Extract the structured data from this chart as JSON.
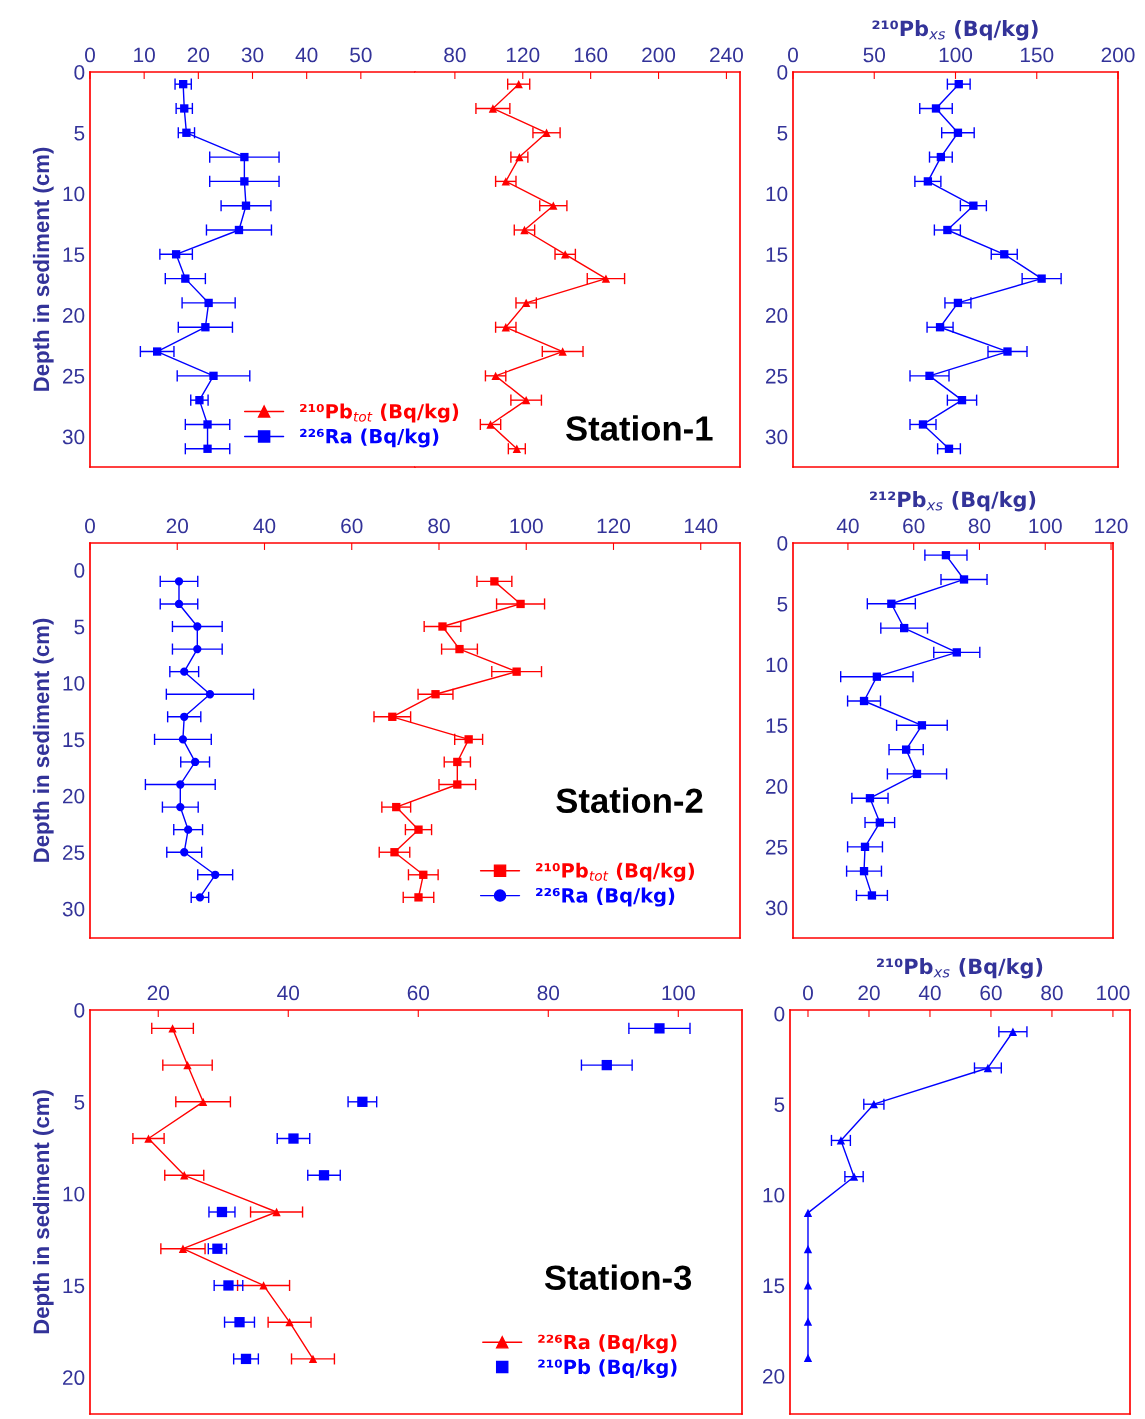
{
  "chart_data": [
    {
      "type": "line",
      "ylabel": "Depth in sediment (cm)",
      "xlim": [
        0,
        60
      ],
      "xticks": [
        0,
        10,
        20,
        30,
        40,
        50
      ],
      "ylim": [
        32.5,
        0
      ],
      "yticks": [
        0,
        5,
        10,
        15,
        20,
        25,
        30
      ],
      "series": [
        {
          "name": "²²⁶Ra (Bq/kg)",
          "color": "#0000ff",
          "marker": "square",
          "x": [
            17.2,
            17.4,
            17.8,
            28.5,
            28.5,
            28.8,
            27.5,
            15.9,
            17.6,
            21.9,
            21.3,
            12.4,
            22.8,
            20.2,
            21.7,
            21.7
          ],
          "values": [
            1,
            3,
            5,
            7,
            9,
            11,
            13,
            15,
            17,
            19,
            21,
            23,
            25,
            27,
            29,
            31
          ],
          "xerrors": [
            1.5,
            1.5,
            1.5,
            6.4,
            6.4,
            4.6,
            6,
            3,
            3.7,
            4.9,
            5,
            3.1,
            6.7,
            1.6,
            4.1,
            4.1
          ]
        }
      ]
    },
    {
      "type": "line",
      "xlim": [
        56.5,
        248
      ],
      "xticks": [
        80,
        120,
        160,
        200,
        240
      ],
      "ylim": [
        32.5,
        0
      ],
      "yticks": [
        0,
        5,
        10,
        15,
        20,
        25,
        30
      ],
      "tick_labels": "x",
      "legend": "bottom left",
      "annotations": [
        "Station-1"
      ],
      "series": [
        {
          "name": "²¹⁰Pb$_{tot}$ (Bq/kg)",
          "color": "#ff0000",
          "marker": "triangle",
          "x": [
            117.6,
            102.4,
            134,
            118,
            110,
            138,
            121,
            145,
            169,
            122,
            110,
            143.5,
            104,
            122,
            101,
            116.5
          ],
          "values": [
            1,
            3,
            5,
            7,
            9,
            11,
            13,
            15,
            17,
            19,
            21,
            23,
            25,
            27,
            29,
            31
          ],
          "xerrors": [
            6.5,
            10,
            8,
            5,
            6,
            8,
            6,
            6,
            11,
            6,
            6,
            12,
            6,
            9,
            6,
            5
          ]
        }
      ]
    },
    {
      "type": "line",
      "xlabel": "²¹⁰Pb$_{xs}$ (Bq/kg)",
      "xlim": [
        0,
        200
      ],
      "xticks": [
        0,
        50,
        100,
        150,
        200
      ],
      "ylim": [
        32.5,
        0
      ],
      "yticks": [
        0,
        5,
        10,
        15,
        20,
        25,
        30
      ],
      "series": [
        {
          "color": "#0000ff",
          "marker": "square",
          "x": [
            102,
            88,
            101.5,
            91,
            83,
            111,
            95,
            130,
            153,
            101.5,
            90.5,
            132,
            84,
            104,
            80,
            96
          ],
          "values": [
            1,
            3,
            5,
            7,
            9,
            11,
            13,
            15,
            17,
            19,
            21,
            23,
            25,
            27,
            29,
            31
          ],
          "xerrors": [
            7,
            10,
            10,
            7,
            8,
            8,
            8,
            8,
            12,
            8,
            8,
            12,
            12,
            9,
            8,
            7
          ]
        }
      ]
    },
    {
      "type": "line",
      "ylabel": "Depth in sediment (cm)",
      "xlim": [
        0,
        149
      ],
      "xticks": [
        0,
        20,
        40,
        60,
        80,
        100,
        120,
        140
      ],
      "ylim": [
        32.6,
        -2.4
      ],
      "yticks": [
        0,
        5,
        10,
        15,
        20,
        25,
        30
      ],
      "legend": "bottom right",
      "annotations": [
        "Station-2"
      ],
      "series": [
        {
          "name": "²¹⁰Pb$_{tot}$ (Bq/kg)",
          "color": "#ff0000",
          "marker": "square",
          "x": [
            92.7,
            98.7,
            80.8,
            84.7,
            97.8,
            79.2,
            69.3,
            86.8,
            84.2,
            84.2,
            70.2,
            75.3,
            69.8,
            76.4,
            75.3
          ],
          "values": [
            1,
            3,
            5,
            7,
            9,
            11,
            13,
            15,
            17,
            19,
            21,
            23,
            25,
            27,
            29
          ],
          "xerrors": [
            4,
            5.5,
            4.2,
            4.1,
            5.7,
            4,
            4.2,
            3.2,
            3,
            4.2,
            3.3,
            3,
            3.5,
            3.4,
            3.5
          ]
        },
        {
          "name": "²²⁶Ra (Bq/kg)",
          "color": "#0000ff",
          "marker": "circle",
          "x": [
            20.4,
            20.4,
            24.6,
            24.6,
            21.6,
            27.5,
            21.6,
            21.3,
            24.1,
            20.7,
            20.7,
            22.5,
            21.6,
            28.7,
            25.2
          ],
          "values": [
            1,
            3,
            5,
            7,
            9,
            11,
            13,
            15,
            17,
            19,
            21,
            23,
            25,
            27,
            29
          ],
          "xerrors": [
            4.3,
            4.3,
            5.7,
            5.7,
            3.3,
            10,
            3.8,
            6.5,
            3.3,
            8,
            4.1,
            3.3,
            4,
            4,
            2
          ]
        }
      ]
    },
    {
      "type": "line",
      "xlabel": "²¹²Pb$_{xs}$ (Bq/kg)",
      "xlim": [
        23.3,
        120.6
      ],
      "xticks": [
        40,
        60,
        80,
        100,
        120
      ],
      "ylim": [
        32.5,
        0
      ],
      "yticks": [
        0,
        5,
        10,
        15,
        20,
        25,
        30
      ],
      "series": [
        {
          "color": "#0000ff",
          "marker": "square",
          "x": [
            69.8,
            75.3,
            53.2,
            57.1,
            73.1,
            48.8,
            44.9,
            62.5,
            57.7,
            61,
            46.7,
            49.7,
            45.2,
            44.9,
            47.3
          ],
          "values": [
            1,
            3,
            5,
            7,
            9,
            11,
            13,
            15,
            17,
            19,
            21,
            23,
            25,
            27,
            29
          ],
          "xerrors": [
            6.4,
            7,
            7.3,
            7.1,
            7,
            11,
            5,
            7.7,
            5.2,
            9,
            5.5,
            4.5,
            5.3,
            5.3,
            4.7
          ]
        }
      ]
    },
    {
      "type": "line",
      "ylabel": "Depth in sediment (cm)",
      "xlim": [
        9.5,
        109.8
      ],
      "xticks": [
        20,
        40,
        60,
        80,
        100
      ],
      "ylim": [
        22,
        0
      ],
      "yticks": [
        0,
        5,
        10,
        15,
        20
      ],
      "legend": "bottom right",
      "annotations": [
        "Station-3"
      ],
      "series": [
        {
          "name": "²²⁶Ra (Bq/kg)",
          "color": "#ff0000",
          "marker": "triangle",
          "x": [
            22.2,
            24.5,
            26.9,
            18.5,
            24,
            38.2,
            23.8,
            36.2,
            40.2,
            43.8
          ],
          "values": [
            1,
            3,
            5,
            7,
            9,
            11,
            13,
            15,
            17,
            19
          ],
          "xerrors": [
            3.2,
            3.8,
            4.2,
            2.4,
            3,
            4,
            3.4,
            4,
            3.3,
            3.3
          ]
        },
        {
          "name": "²¹⁰Pb (Bq/kg)",
          "type": "scatter",
          "color": "#0000ff",
          "marker": "square",
          "x": [
            97.1,
            89,
            51.4,
            40.8,
            45.5,
            29.8,
            29.1,
            30.8,
            32.5,
            33.5
          ],
          "values": [
            1,
            3,
            5,
            7,
            9,
            11,
            13,
            15,
            17,
            19
          ],
          "xerrors": [
            4.7,
            3.9,
            2.2,
            2.5,
            2.5,
            2,
            1.4,
            2.2,
            2.3,
            1.9
          ]
        }
      ]
    },
    {
      "type": "line",
      "xlabel": "²¹⁰Pb$_{xs}$ (Bq/kg)",
      "xlim": [
        -5.9,
        105.6
      ],
      "xticks": [
        0,
        20,
        40,
        60,
        80,
        100
      ],
      "ylim": [
        22.1,
        -0.2
      ],
      "yticks": [
        0,
        5,
        10,
        15,
        20
      ],
      "series": [
        {
          "color": "#0000ff",
          "marker": "triangle",
          "x": [
            67.2,
            59,
            21.6,
            10.8,
            15.1,
            0,
            0,
            0,
            0,
            0
          ],
          "values": [
            1,
            3,
            5,
            7,
            9,
            11,
            13,
            15,
            17,
            19
          ],
          "xerrors": [
            4.6,
            4.4,
            3.3,
            3.1,
            3,
            null,
            null,
            null,
            null,
            null
          ]
        }
      ]
    }
  ]
}
